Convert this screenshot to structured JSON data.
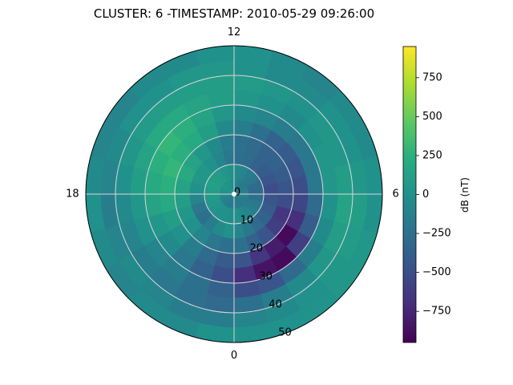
{
  "title": "CLUSTER: 6 -TIMESTAMP: 2010-05-29 09:26:00",
  "chart_data": {
    "type": "heatmap",
    "projection": "polar",
    "angular_tick_labels": [
      {
        "label": "12",
        "mlt": 12
      },
      {
        "label": "6",
        "mlt": 6
      },
      {
        "label": "0",
        "mlt": 0
      },
      {
        "label": "18",
        "mlt": 18
      }
    ],
    "radial_tick_labels": [
      "0",
      "10",
      "20",
      "30",
      "40",
      "50"
    ],
    "radial_ticks": [
      0,
      10,
      20,
      30,
      40,
      50
    ],
    "rlim": [
      0,
      50
    ],
    "grid": true,
    "colorbar": {
      "label": "dB (nT)",
      "colormap": "viridis",
      "vmin": -950,
      "vmax": 950,
      "ticks": [
        -750,
        -500,
        -250,
        0,
        250,
        500,
        750
      ],
      "tick_labels": [
        "−750",
        "−500",
        "−250",
        "0",
        "250",
        "500",
        "750"
      ]
    },
    "rings": [
      {
        "r": [
          0,
          5
        ],
        "values": [
          -150,
          -180,
          -200,
          -170,
          -150,
          -120,
          -100,
          -150,
          -180,
          -200,
          -150,
          -100,
          -50,
          0,
          20,
          50,
          20,
          0,
          -50,
          -100,
          -120,
          -150,
          -180,
          -160
        ]
      },
      {
        "r": [
          5,
          10
        ],
        "values": [
          0,
          -50,
          -100,
          -150,
          -200,
          -250,
          -300,
          -280,
          -200,
          -150,
          -100,
          -50,
          0,
          50,
          80,
          100,
          120,
          100,
          80,
          60,
          30,
          10,
          0,
          -20
        ]
      },
      {
        "r": [
          10,
          15
        ],
        "values": [
          -100,
          -200,
          -300,
          -350,
          -400,
          -450,
          -500,
          -450,
          -400,
          -350,
          -300,
          -250,
          -200,
          -100,
          0,
          50,
          50,
          0,
          -100,
          -200,
          -250,
          -150,
          -50,
          0
        ]
      },
      {
        "r": [
          15,
          20
        ],
        "values": [
          -250,
          -350,
          -450,
          -600,
          -650,
          -500,
          -450,
          -400,
          -350,
          -350,
          -300,
          -250,
          -150,
          -50,
          50,
          150,
          200,
          150,
          100,
          50,
          0,
          -100,
          -200,
          -250
        ]
      },
      {
        "r": [
          20,
          25
        ],
        "values": [
          -450,
          -650,
          -800,
          -900,
          -700,
          -550,
          -500,
          -450,
          -400,
          -350,
          -250,
          -150,
          -50,
          100,
          200,
          250,
          300,
          250,
          200,
          100,
          0,
          -150,
          -300,
          -400
        ]
      },
      {
        "r": [
          25,
          30
        ],
        "values": [
          -700,
          -850,
          -900,
          -600,
          -400,
          -300,
          -200,
          -200,
          -200,
          -150,
          -100,
          -50,
          50,
          150,
          250,
          300,
          250,
          200,
          150,
          50,
          -50,
          -200,
          -350,
          -500
        ]
      },
      {
        "r": [
          30,
          35
        ],
        "values": [
          -500,
          -450,
          -300,
          -150,
          -50,
          0,
          50,
          50,
          0,
          -50,
          0,
          50,
          100,
          150,
          200,
          200,
          150,
          100,
          50,
          0,
          -100,
          -150,
          -250,
          -350
        ]
      },
      {
        "r": [
          35,
          40
        ],
        "values": [
          -250,
          -150,
          -50,
          50,
          100,
          150,
          100,
          50,
          50,
          0,
          50,
          80,
          100,
          100,
          100,
          80,
          50,
          0,
          -50,
          -100,
          -150,
          -200,
          -250,
          -300
        ]
      },
      {
        "r": [
          40,
          45
        ],
        "values": [
          -100,
          -50,
          0,
          50,
          80,
          100,
          50,
          0,
          0,
          -50,
          -50,
          0,
          50,
          50,
          0,
          0,
          -50,
          -100,
          -150,
          -100,
          -50,
          -100,
          -150,
          -150
        ]
      },
      {
        "r": [
          45,
          50
        ],
        "values": [
          0,
          0,
          20,
          50,
          50,
          0,
          0,
          -50,
          -50,
          -100,
          -50,
          0,
          0,
          -50,
          -50,
          -100,
          -100,
          -50,
          0,
          -50,
          -100,
          -50,
          -50,
          0
        ]
      }
    ]
  }
}
